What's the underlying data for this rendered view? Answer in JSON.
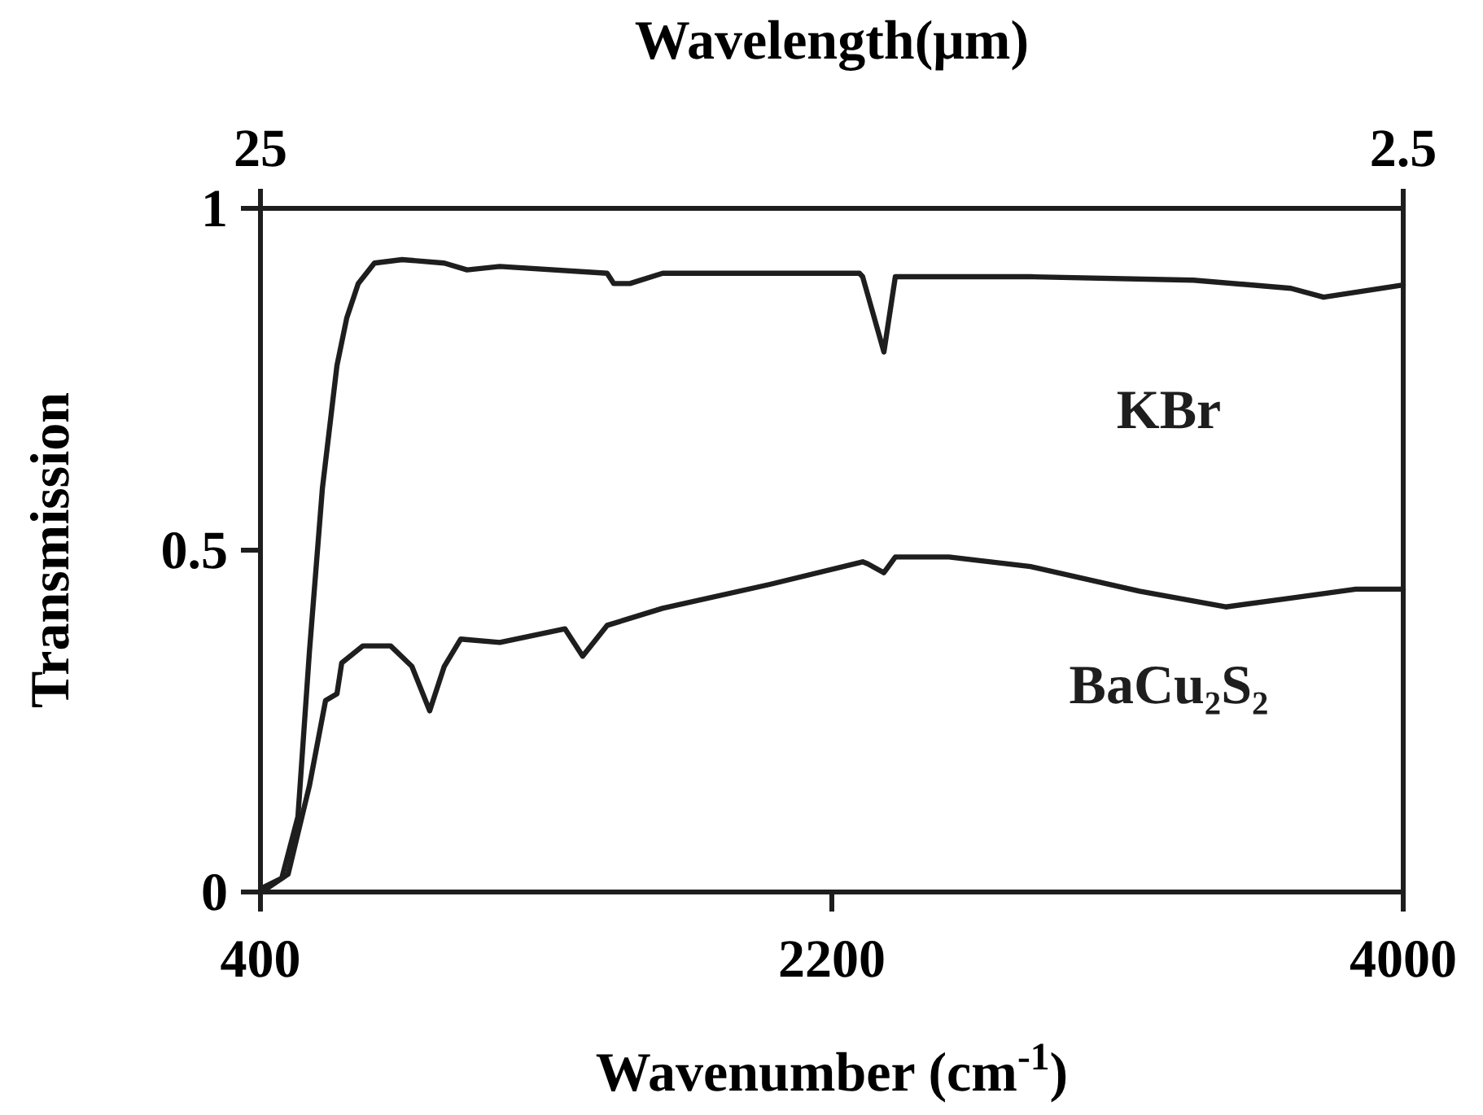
{
  "chart_data": {
    "type": "line",
    "xlabel": "Wavenumber (cm$^{-1}$)",
    "x2label": "Wavelength(μm)",
    "ylabel": "Transmission",
    "xlim": [
      400,
      4000
    ],
    "xticks": [
      400,
      2200,
      4000
    ],
    "x2lim": [
      25,
      2.5
    ],
    "x2ticks": [
      25,
      2.5
    ],
    "ylim": [
      0,
      1
    ],
    "yticks": [
      0,
      0.5,
      1
    ],
    "grid": false,
    "legend": false,
    "marker": "none",
    "line_style": "solid",
    "series": [
      {
        "name": "KBr",
        "color": "#1e1e1e",
        "x": [
          410,
          467,
          518,
          554,
          595,
          641,
          672,
          708,
          759,
          846,
          979,
          1051,
          1154,
          1492,
          1513,
          1564,
          1667,
          2005,
          2287,
          2297,
          2364,
          2400,
          2826,
          3339,
          3646,
          3749,
          4000
        ],
        "values": [
          0.007,
          0.02,
          0.11,
          0.35,
          0.59,
          0.77,
          0.84,
          0.89,
          0.92,
          0.925,
          0.92,
          0.91,
          0.915,
          0.905,
          0.89,
          0.89,
          0.905,
          0.905,
          0.905,
          0.9,
          0.79,
          0.9,
          0.9,
          0.895,
          0.883,
          0.87,
          0.888
        ]
      },
      {
        "name": "BaCu₂S₂",
        "color": "#1e1e1e",
        "x": [
          410,
          487,
          554,
          605,
          641,
          656,
          723,
          810,
          877,
          933,
          979,
          1031,
          1154,
          1359,
          1415,
          1492,
          1667,
          2005,
          2297,
          2313,
          2364,
          2400,
          2569,
          2826,
          3169,
          3441,
          3646,
          3851,
          4000
        ],
        "values": [
          0.002,
          0.026,
          0.155,
          0.28,
          0.29,
          0.335,
          0.36,
          0.36,
          0.33,
          0.265,
          0.33,
          0.37,
          0.365,
          0.385,
          0.345,
          0.39,
          0.415,
          0.45,
          0.483,
          0.48,
          0.467,
          0.49,
          0.49,
          0.476,
          0.44,
          0.417,
          0.43,
          0.443,
          0.443
        ]
      }
    ]
  }
}
